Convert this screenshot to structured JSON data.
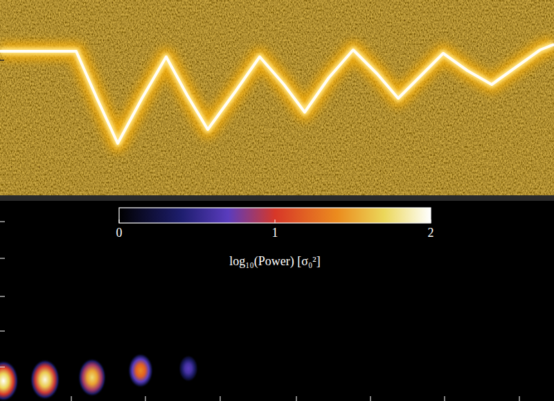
{
  "chart_data": [
    {
      "type": "line",
      "x": [
        0,
        40,
        80,
        110,
        140,
        170,
        205,
        240,
        270,
        300,
        340,
        375,
        410,
        440,
        475,
        510,
        545,
        575,
        610,
        640,
        675,
        710,
        745,
        780,
        800
      ],
      "values": [
        208,
        208,
        208,
        208,
        140,
        75,
        140,
        200,
        145,
        95,
        150,
        200,
        160,
        120,
        170,
        210,
        175,
        140,
        175,
        205,
        180,
        160,
        185,
        210,
        218
      ],
      "xlim": [
        0,
        800
      ],
      "ylim": [
        0,
        282
      ],
      "yticks": [
        195
      ],
      "color": "#ffb000",
      "tick_labels": false
    },
    {
      "type": "heatmap",
      "x": [
        5,
        65,
        133,
        203,
        272
      ],
      "y": [
        29,
        31,
        34,
        44,
        47
      ],
      "values": [
        2.0,
        1.95,
        1.75,
        1.4,
        0.7
      ],
      "xlim": [
        0,
        800
      ],
      "ylim": [
        0,
        289
      ],
      "xticks": [
        103,
        210,
        318,
        428,
        535,
        642,
        750
      ],
      "yticks": [
        49,
        101,
        151,
        206,
        259
      ],
      "color_range": [
        0,
        2
      ],
      "color_ticks": [
        0,
        1,
        2
      ],
      "color_label": "log₁₀(Power) [σ₀²]",
      "tick_labels": false
    }
  ]
}
